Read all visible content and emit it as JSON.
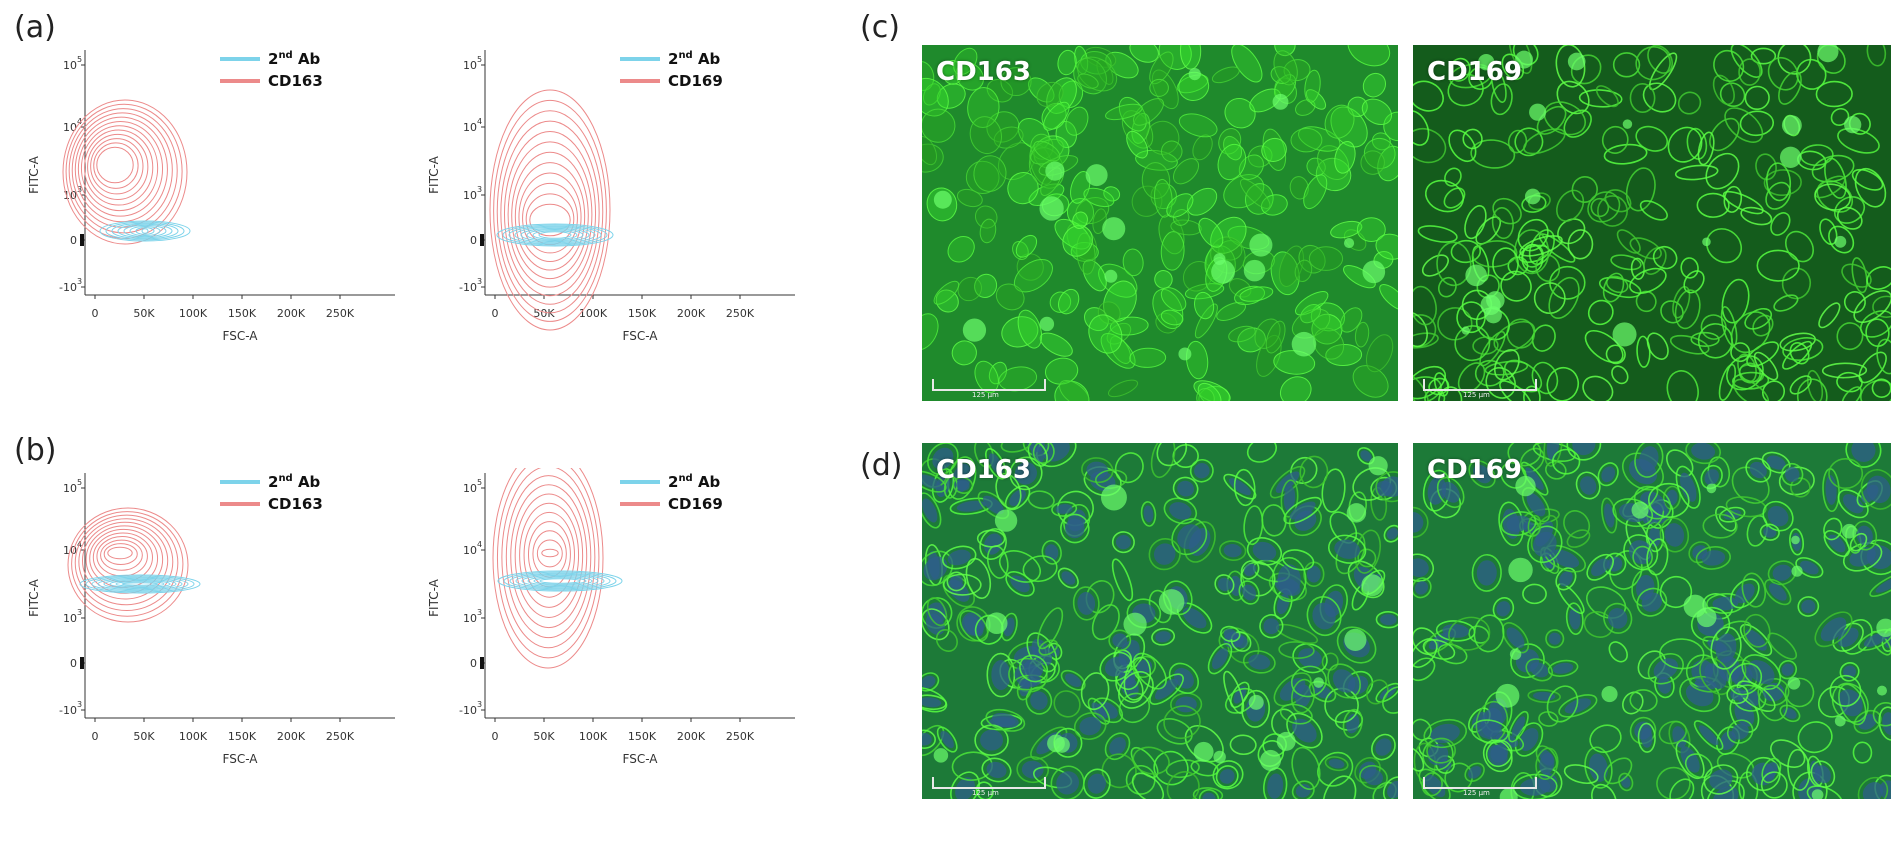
{
  "panels": {
    "a": "(a)",
    "b": "(b)",
    "c": "(c)",
    "d": "(d)"
  },
  "flow_axes": {
    "xlabel": "FSC-A",
    "ylabel": "FITC-A",
    "xticks": [
      "0",
      "50K",
      "100K",
      "150K",
      "200K",
      "250K"
    ],
    "yticks": [
      "10",
      "10",
      "10",
      "0",
      "-10"
    ],
    "yticks_exp": [
      "5",
      "4",
      "3",
      "",
      "3"
    ]
  },
  "legend": {
    "ctrl_base": "2",
    "ctrl_sup": "nd",
    "ctrl_rest": " Ab",
    "ctrl_color": "#7dd3ea",
    "marker_color": "#ec8a8a"
  },
  "plots": [
    {
      "panel": "a",
      "marker": "CD163"
    },
    {
      "panel": "a",
      "marker": "CD169"
    },
    {
      "panel": "b",
      "marker": "CD163"
    },
    {
      "panel": "b",
      "marker": "CD169"
    }
  ],
  "micrographs": [
    {
      "panel": "c",
      "label": "CD163",
      "scale": "125 μm"
    },
    {
      "panel": "c",
      "label": "CD169",
      "scale": "125 μm"
    },
    {
      "panel": "d",
      "label": "CD163",
      "scale": "125 μm"
    },
    {
      "panel": "d",
      "label": "CD169",
      "scale": "125 μm"
    }
  ]
}
